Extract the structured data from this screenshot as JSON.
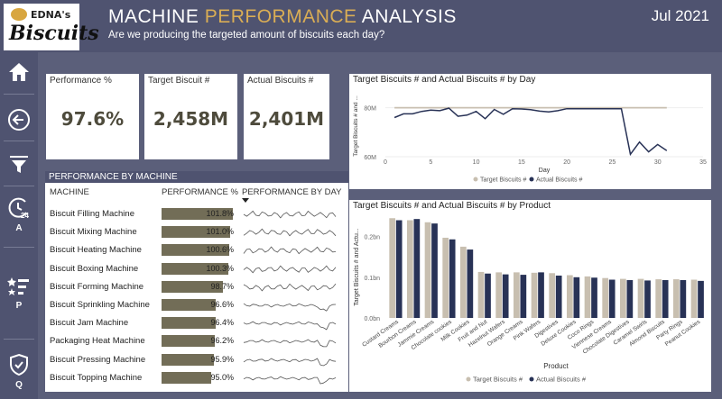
{
  "header": {
    "logo_top": "EDNA's",
    "logo_main": "Biscuits",
    "title_part1": "MACHINE ",
    "title_highlight": "PERFORMANCE",
    "title_part2": " ANALYSIS",
    "subtitle": "Are we producing the targeted amount of biscuits each day?",
    "date": "Jul 2021"
  },
  "sidebar": {
    "items": [
      {
        "icon": "home-icon",
        "label": ""
      },
      {
        "icon": "back-arrow-icon",
        "label": ""
      },
      {
        "icon": "filter-icon",
        "label": ""
      },
      {
        "icon": "clock-24-icon",
        "label": "A"
      },
      {
        "icon": "star-list-icon",
        "label": "P"
      },
      {
        "icon": "shield-check-icon",
        "label": "Q"
      }
    ]
  },
  "kpis": [
    {
      "title": "Performance %",
      "value": "97.6%"
    },
    {
      "title": "Target Biscuit #",
      "value": "2,458M"
    },
    {
      "title": "Actual Biscuits #",
      "value": "2,401M"
    }
  ],
  "performance_table": {
    "title": "PERFORMANCE BY MACHINE",
    "col_machine": "MACHINE",
    "col_performance": "PERFORMANCE %",
    "col_by_day": "PERFORMANCE BY DAY",
    "rows": [
      {
        "machine": "Biscuit Filling Machine",
        "performance": "101.8%",
        "value": 101.8
      },
      {
        "machine": "Biscuit Mixing Machine",
        "performance": "101.0%",
        "value": 101.0
      },
      {
        "machine": "Biscuit Heating Machine",
        "performance": "100.6%",
        "value": 100.6
      },
      {
        "machine": "Biscuit Boxing Machine",
        "performance": "100.3%",
        "value": 100.3
      },
      {
        "machine": "Biscuit Forming Machine",
        "performance": "98.7%",
        "value": 98.7
      },
      {
        "machine": "Biscuit Sprinkling Machine",
        "performance": "96.6%",
        "value": 96.6
      },
      {
        "machine": "Biscuit Jam Machine",
        "performance": "96.4%",
        "value": 96.4
      },
      {
        "machine": "Packaging Heat Machine",
        "performance": "96.2%",
        "value": 96.2
      },
      {
        "machine": "Biscuit Pressing Machine",
        "performance": "95.9%",
        "value": 95.9
      },
      {
        "machine": "Biscuit Topping Machine",
        "performance": "95.0%",
        "value": 95.0
      }
    ]
  },
  "colors": {
    "target": "#c8bfb0",
    "actual": "#283256",
    "bar": "#726d57",
    "accent": "#d9ad55"
  },
  "chart_data": [
    {
      "type": "line",
      "title": "Target Biscuits # and Actual Biscuits # by Day",
      "xlabel": "Day",
      "ylabel": "Target Biscuits # and ...",
      "xlim": [
        0,
        35
      ],
      "xticks": [
        0,
        5,
        10,
        15,
        20,
        25,
        30,
        35
      ],
      "ylim": [
        60,
        85
      ],
      "yticks": [
        {
          "v": 80,
          "label": "80M"
        },
        {
          "v": 60,
          "label": "60M"
        }
      ],
      "legend": "bottom",
      "series": [
        {
          "name": "Target Biscuits #",
          "x": [
            1,
            2,
            3,
            4,
            5,
            6,
            7,
            8,
            9,
            10,
            11,
            12,
            13,
            14,
            15,
            16,
            17,
            18,
            19,
            20,
            21,
            22,
            23,
            24,
            25,
            26,
            27,
            28,
            29,
            30,
            31
          ],
          "y": [
            80,
            80,
            80,
            80,
            80,
            80,
            80,
            80,
            80,
            80,
            80,
            80,
            80,
            80,
            80,
            80,
            80,
            80,
            80,
            80,
            80,
            80,
            80,
            80,
            80,
            80,
            80,
            80,
            80,
            80,
            80
          ]
        },
        {
          "name": "Actual Biscuits #",
          "x": [
            1,
            2,
            3,
            4,
            5,
            6,
            7,
            8,
            9,
            10,
            11,
            12,
            13,
            14,
            15,
            16,
            17,
            18,
            19,
            20,
            21,
            22,
            23,
            24,
            25,
            26,
            27,
            28,
            29,
            30,
            31
          ],
          "y": [
            76,
            77.5,
            77.5,
            78.5,
            79,
            78.8,
            79.8,
            76.5,
            77,
            78.5,
            75.5,
            79.3,
            77.3,
            79.6,
            79.5,
            79.2,
            78.6,
            78.3,
            78.8,
            79.6,
            79.6,
            79.6,
            79.6,
            79.6,
            79.6,
            79.6,
            61,
            66,
            62,
            65,
            62.5
          ]
        }
      ]
    },
    {
      "type": "bar",
      "title": "Target Biscuits # and Actual Biscuits # by Product",
      "xlabel": "Product",
      "ylabel": "Target Biscuits # and Actu...",
      "ylim": [
        0,
        0.25
      ],
      "yticks": [
        {
          "v": 0,
          "label": "0.0bn"
        },
        {
          "v": 0.1,
          "label": "0.1bn"
        },
        {
          "v": 0.2,
          "label": "0.2bn"
        }
      ],
      "legend": "bottom",
      "categories": [
        "Custard Creams",
        "Bourbon Creams",
        "Jammie Creams",
        "Chocolate cookies",
        "Milk Cookies",
        "Fruit and Nut",
        "Hazelnut Wafers",
        "Orange Creams",
        "Pink Wafers",
        "Digestives",
        "Deluxe Cookies",
        "Coco Rings",
        "Viennese Creams",
        "Chocolate Digestives",
        "Caramel Swirls",
        "Almond Biscuits",
        "Party Rings",
        "Peanut Cookies"
      ],
      "series": [
        {
          "name": "Target Biscuits #",
          "values": [
            0.245,
            0.24,
            0.235,
            0.197,
            0.175,
            0.113,
            0.112,
            0.112,
            0.111,
            0.11,
            0.105,
            0.102,
            0.098,
            0.096,
            0.096,
            0.095,
            0.095,
            0.094
          ]
        },
        {
          "name": "Actual Biscuits #",
          "values": [
            0.24,
            0.243,
            0.232,
            0.193,
            0.168,
            0.109,
            0.107,
            0.106,
            0.112,
            0.104,
            0.1,
            0.099,
            0.094,
            0.093,
            0.092,
            0.093,
            0.093,
            0.091
          ]
        }
      ]
    }
  ]
}
